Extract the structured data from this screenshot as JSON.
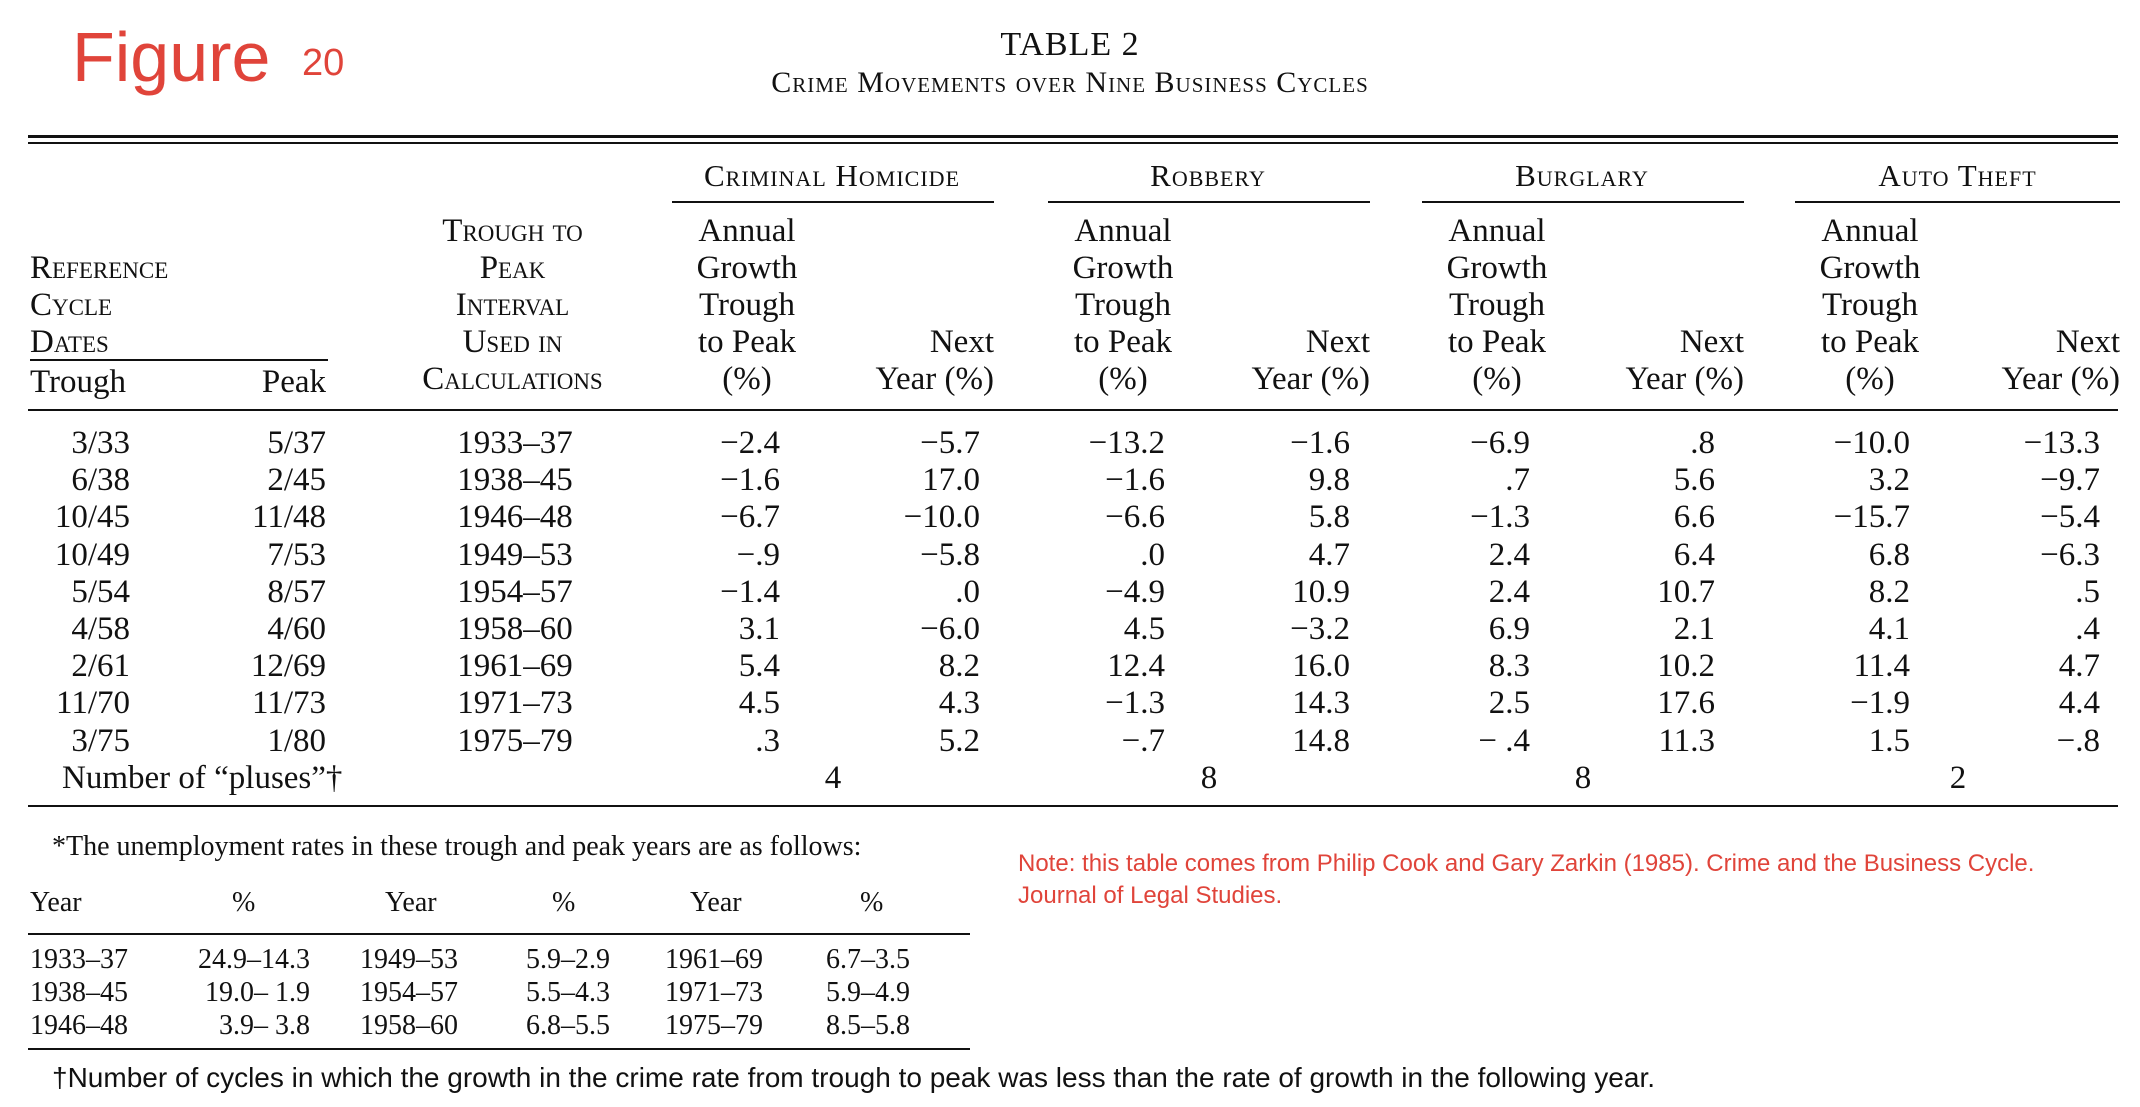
{
  "figure": {
    "word": "Figure",
    "number": "20"
  },
  "table_title": "TABLE 2",
  "table_subtitle": "Crime Movements over Nine Business Cycles",
  "headers": {
    "reference_cycle": [
      "Reference",
      "Cycle",
      "Dates"
    ],
    "trough": "Trough",
    "peak": "Peak",
    "interval": [
      "Trough to",
      "Peak",
      "Interval",
      "Used in",
      "Calculations"
    ],
    "groups": [
      "Criminal Homicide",
      "Robbery",
      "Burglary",
      "Auto Theft"
    ],
    "annual_growth": [
      "Annual",
      "Growth",
      "Trough",
      "to Peak",
      "(%)"
    ],
    "next_year": [
      "Next",
      "Year (%)"
    ]
  },
  "rows": [
    {
      "trough": "3/33",
      "peak": "5/37",
      "interval": "1933–37",
      "vals": [
        "−2.4",
        "−5.7",
        "−13.2",
        "−1.6",
        "−6.9",
        ".8",
        "−10.0",
        "−13.3"
      ]
    },
    {
      "trough": "6/38",
      "peak": "2/45",
      "interval": "1938–45",
      "vals": [
        "−1.6",
        "17.0",
        "−1.6",
        "9.8",
        ".7",
        "5.6",
        "3.2",
        "−9.7"
      ]
    },
    {
      "trough": "10/45",
      "peak": "11/48",
      "interval": "1946–48",
      "vals": [
        "−6.7",
        "−10.0",
        "−6.6",
        "5.8",
        "−1.3",
        "6.6",
        "−15.7",
        "−5.4"
      ]
    },
    {
      "trough": "10/49",
      "peak": "7/53",
      "interval": "1949–53",
      "vals": [
        "−.9",
        "−5.8",
        ".0",
        "4.7",
        "2.4",
        "6.4",
        "6.8",
        "−6.3"
      ]
    },
    {
      "trough": "5/54",
      "peak": "8/57",
      "interval": "1954–57",
      "vals": [
        "−1.4",
        ".0",
        "−4.9",
        "10.9",
        "2.4",
        "10.7",
        "8.2",
        ".5"
      ]
    },
    {
      "trough": "4/58",
      "peak": "4/60",
      "interval": "1958–60",
      "vals": [
        "3.1",
        "−6.0",
        "4.5",
        "−3.2",
        "6.9",
        "2.1",
        "4.1",
        ".4"
      ]
    },
    {
      "trough": "2/61",
      "peak": "12/69",
      "interval": "1961–69",
      "vals": [
        "5.4",
        "8.2",
        "12.4",
        "16.0",
        "8.3",
        "10.2",
        "11.4",
        "4.7"
      ]
    },
    {
      "trough": "11/70",
      "peak": "11/73",
      "interval": "1971–73",
      "vals": [
        "4.5",
        "4.3",
        "−1.3",
        "14.3",
        "2.5",
        "17.6",
        "−1.9",
        "4.4"
      ]
    },
    {
      "trough": "3/75",
      "peak": "1/80",
      "interval": "1975–79",
      "vals": [
        ".3",
        "5.2",
        "−.7",
        "14.8",
        "− .4",
        "11.3",
        "1.5",
        "−.8"
      ]
    }
  ],
  "pluses_label": "Number of “pluses”†",
  "pluses": [
    "4",
    "8",
    "8",
    "2"
  ],
  "unemployment": {
    "intro": "*The unemployment rates in these trough and peak years are as follows:",
    "col_year": "Year",
    "col_pct": "%",
    "rows": [
      [
        "1933–37",
        "24.9–14.3",
        "1949–53",
        "5.9–2.9",
        "1961–69",
        "6.7–3.5"
      ],
      [
        "1938–45",
        "19.0– 1.9",
        "1954–57",
        "5.5–4.3",
        "1971–73",
        "5.9–4.9"
      ],
      [
        "1946–48",
        "3.9– 3.8",
        "1958–60",
        "6.8–5.5",
        "1975–79",
        "8.5–5.8"
      ]
    ]
  },
  "note": "Note: this table comes from Philip Cook and Gary Zarkin (1985). Crime and the Business Cycle. Journal of Legal Studies.",
  "footnote": "†Number of cycles in which the growth in the crime rate from trough to peak was less than the rate of growth in the following year."
}
